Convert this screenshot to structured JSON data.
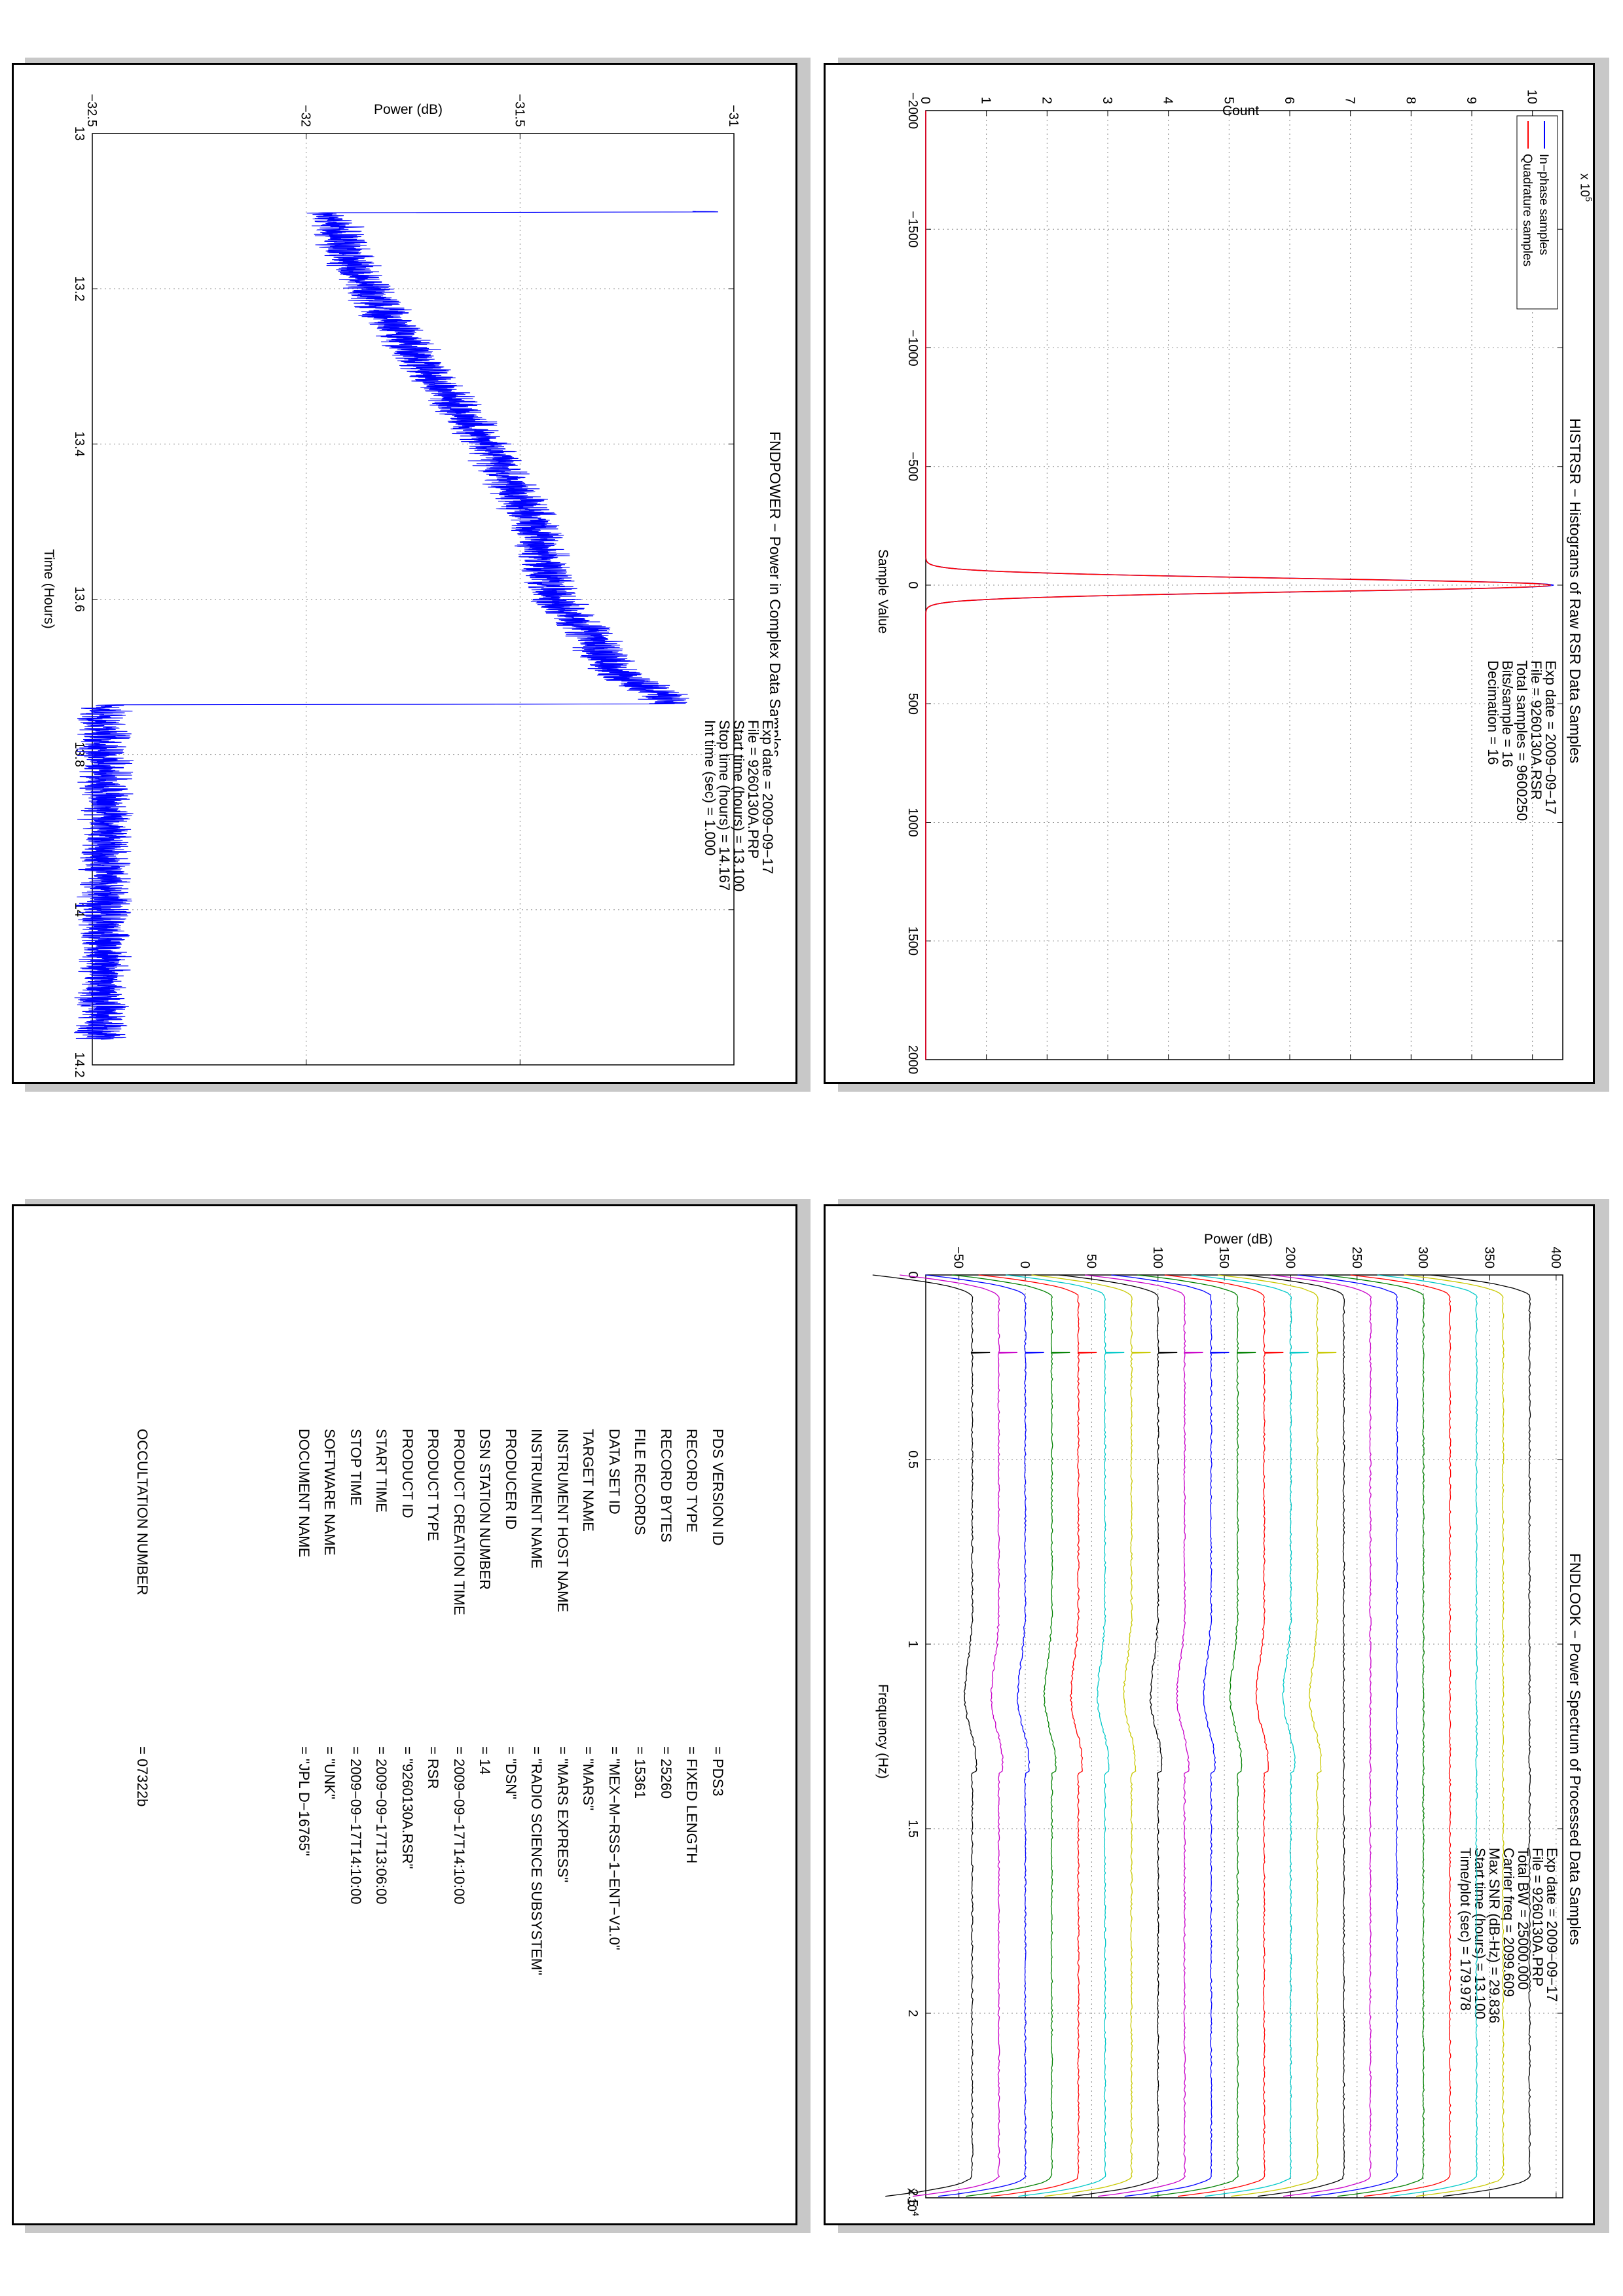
{
  "charts": {
    "histrsr": {
      "title": "HISTRSR − Histograms of Raw RSR Data Samples",
      "xlabel": "Sample Value",
      "ylabel": "Count",
      "multiplier": "x 10",
      "multiplier_exp": "5",
      "info": [
        "Exp date = 2009−09−17",
        "File = 9260130A.RSR",
        "Total samples =  9600250",
        "Bits/sample   =        16",
        "Decimation    =       16"
      ],
      "colors": {
        "inphase": "#0000ff",
        "quadrature": "#ff0000"
      }
    },
    "fndpower": {
      "title": "FNDPOWER − Power in Complex Data Samples",
      "xlabel": "Time (Hours)",
      "ylabel": "Power (dB)",
      "info": [
        "Exp date = 2009−09−17",
        "File = 9260130A.PRP",
        "Start time (hours) =  13.100",
        "Stop time (hours)  =  14.167",
        "Int time (sec)  =       1.000"
      ],
      "colors": {
        "power": "#0000ff"
      }
    },
    "fndlook": {
      "title": "FNDLOOK − Power Spectrum of Processed Data Samples",
      "xlabel": "Frequency (Hz)",
      "ylabel": "Power (dB)",
      "multiplier": "x 10",
      "multiplier_exp": "4",
      "info": [
        "Exp date = 2009−09−17",
        "File = 9260130A.PRP",
        "Total BW =       25000.000",
        "Carrier freq =    2099.609",
        "Max SNR (dB-Hz) =     29.836",
        "Start time (hours) =   13.100",
        "Time/plot (sec) =    179.978"
      ],
      "colors": {
        "cycle": [
          "#000000",
          "#c8c800",
          "#00c8c8",
          "#ff0000",
          "#008000",
          "#0000ff",
          "#c800c8"
        ]
      }
    }
  },
  "chart_data": [
    {
      "type": "line",
      "title": "HISTRSR − Histograms of Raw RSR Data Samples",
      "xlabel": "Sample Value",
      "ylabel": "Count",
      "xlim": [
        -2000,
        2000
      ],
      "ylim": [
        0,
        1050000
      ],
      "xticks": [
        -2000,
        -1500,
        -1000,
        -500,
        0,
        500,
        1000,
        1500,
        2000
      ],
      "yticks": [
        0,
        1,
        2,
        3,
        4,
        5,
        6,
        7,
        8,
        9,
        10
      ],
      "ytick_scale": 100000,
      "grid": true,
      "legend": "top-left",
      "series": [
        {
          "name": "In−phase samples",
          "peak_x": 0,
          "peak_y": 1035000,
          "sigma": 28
        },
        {
          "name": "Quadrature samples",
          "peak_x": 0,
          "peak_y": 1030000,
          "sigma": 28
        }
      ]
    },
    {
      "type": "line",
      "title": "FNDPOWER − Power in Complex Data Samples",
      "xlabel": "Time (Hours)",
      "ylabel": "Power (dB)",
      "xlim": [
        13,
        14.2
      ],
      "ylim": [
        -32.5,
        -31
      ],
      "xticks": [
        13,
        13.2,
        13.4,
        13.6,
        13.8,
        14,
        14.2
      ],
      "yticks": [
        -32.5,
        -32,
        -31.5,
        -31
      ],
      "grid": true,
      "series": [
        {
          "name": "",
          "x": [
            13.1,
            13.101,
            13.102,
            13.2,
            13.3,
            13.4,
            13.5,
            13.6,
            13.65,
            13.7,
            13.72,
            13.735,
            13.736,
            13.75,
            13.9,
            14.0,
            14.167
          ],
          "y": [
            -31.06,
            -31.06,
            -31.95,
            -31.86,
            -31.72,
            -31.58,
            -31.47,
            -31.42,
            -31.33,
            -31.27,
            -31.17,
            -31.16,
            -32.48,
            -32.47,
            -32.47,
            -32.47,
            -32.48
          ]
        }
      ]
    },
    {
      "type": "line",
      "title": "FNDLOOK − Power Spectrum of Processed Data Samples",
      "xlabel": "Frequency (Hz)",
      "ylabel": "Power (dB)",
      "xlim": [
        0,
        25000
      ],
      "ylim": [
        -75,
        405
      ],
      "xticks": [
        0,
        5000,
        10000,
        15000,
        20000,
        25000
      ],
      "xtick_labels": [
        "0",
        "0.5",
        "1",
        "1.5",
        "2",
        "2.5"
      ],
      "yticks": [
        -50,
        0,
        50,
        100,
        150,
        200,
        250,
        300,
        350,
        400
      ],
      "grid": true,
      "series_count": 22,
      "offset_step": 20,
      "carrier_freq": 2099.609
    }
  ],
  "pds_label": {
    "rows": [
      {
        "key": "PDS VERSION ID",
        "value": "=  PDS3"
      },
      {
        "key": "RECORD TYPE",
        "value": "=  FIXED LENGTH"
      },
      {
        "key": "RECORD BYTES",
        "value": "=  25260"
      },
      {
        "key": "FILE RECORDS",
        "value": "=  15361"
      },
      {
        "key": "DATA SET ID",
        "value": "=  \"MEX−M−RSS−1−ENT−V1.0\""
      },
      {
        "key": "TARGET NAME",
        "value": "=  \"MARS\""
      },
      {
        "key": "INSTRUMENT HOST NAME",
        "value": "=  \"MARS EXPRESS\""
      },
      {
        "key": "INSTRUMENT NAME",
        "value": "=  \"RADIO SCIENCE SUBSYSTEM\""
      },
      {
        "key": "PRODUCER ID",
        "value": "=  \"DSN\""
      },
      {
        "key": "DSN STATION NUMBER",
        "value": "=  14"
      },
      {
        "key": "PRODUCT CREATION TIME",
        "value": "=  2009−09−17T14:10:00"
      },
      {
        "key": "PRODUCT TYPE",
        "value": "=  RSR"
      },
      {
        "key": "PRODUCT ID",
        "value": "=  \"9260130A.RSR\""
      },
      {
        "key": "START TIME",
        "value": "=  2009−09−17T13:06:00"
      },
      {
        "key": "STOP TIME",
        "value": "=  2009−09−17T14:10:00"
      },
      {
        "key": "SOFTWARE NAME",
        "value": "=  \"UNK\""
      },
      {
        "key": "DOCUMENT NAME",
        "value": "=  \"JPL D−16765\""
      }
    ],
    "occultation": {
      "key": "OCCULTATION NUMBER",
      "value": "=  07322b"
    }
  }
}
